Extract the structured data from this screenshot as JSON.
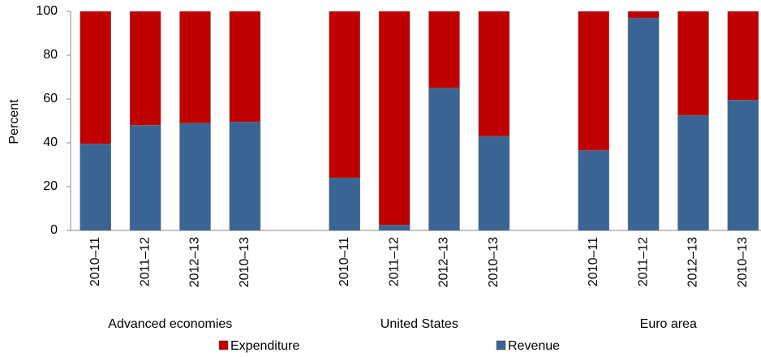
{
  "chart_data": {
    "type": "stacked_bar",
    "y_label": "Percent",
    "groups": [
      "Advanced economies",
      "United States",
      "Euro area"
    ],
    "categories": [
      "2010–11",
      "2011–12",
      "2012–13",
      "2010–13",
      "2010–11",
      "2011–12",
      "2012–13",
      "2010–13",
      "2010–11",
      "2011–12",
      "2012–13",
      "2010–13"
    ],
    "series": [
      {
        "name": "Expenditure",
        "color": "#c00000",
        "values": [
          60.5,
          52,
          51,
          50.5,
          76,
          97.5,
          35,
          57,
          63.5,
          3,
          47.5,
          40.5
        ]
      },
      {
        "name": "Revenue",
        "color": "#3a6493",
        "values": [
          39.5,
          48,
          49,
          49.5,
          24,
          2.5,
          65,
          43,
          36.5,
          97,
          52.5,
          59.5
        ]
      }
    ],
    "ylim": [
      0,
      100
    ],
    "yticks": [
      0,
      20,
      40,
      60,
      80,
      100
    ],
    "grid": false
  }
}
